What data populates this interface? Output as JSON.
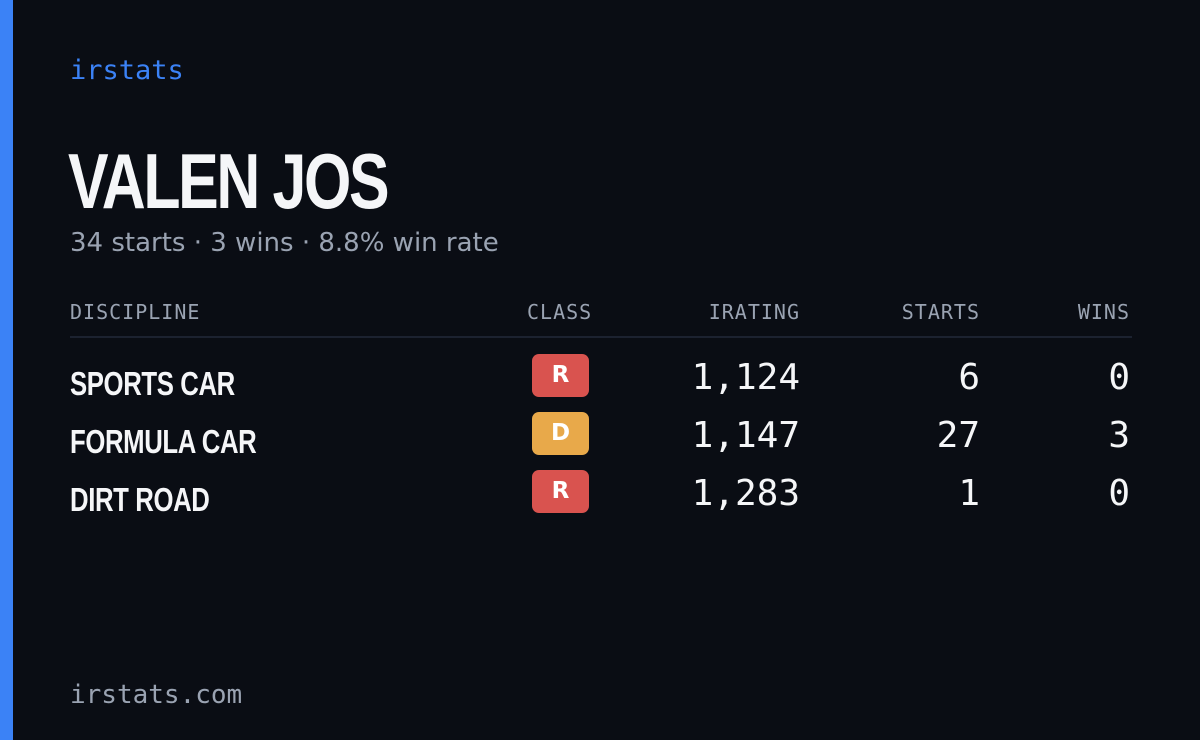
{
  "brand": "irstats",
  "driver": {
    "name": "VALEN JOS",
    "summary": "34 starts · 3 wins · 8.8% win rate"
  },
  "table": {
    "headers": {
      "discipline": "DISCIPLINE",
      "class": "CLASS",
      "irating": "IRATING",
      "starts": "STARTS",
      "wins": "WINS"
    },
    "rows": [
      {
        "discipline": "SPORTS CAR",
        "class": "R",
        "class_color": "#d9534f",
        "irating": "1,124",
        "starts": "6",
        "wins": "0"
      },
      {
        "discipline": "FORMULA CAR",
        "class": "D",
        "class_color": "#e8a94a",
        "irating": "1,147",
        "starts": "27",
        "wins": "3"
      },
      {
        "discipline": "DIRT ROAD",
        "class": "R",
        "class_color": "#d9534f",
        "irating": "1,283",
        "starts": "1",
        "wins": "0"
      }
    ]
  },
  "footer": "irstats.com",
  "colors": {
    "background": "#0a0d14",
    "accent": "#3b82f6",
    "text": "#f5f6f8",
    "muted": "#9aa3b2"
  }
}
